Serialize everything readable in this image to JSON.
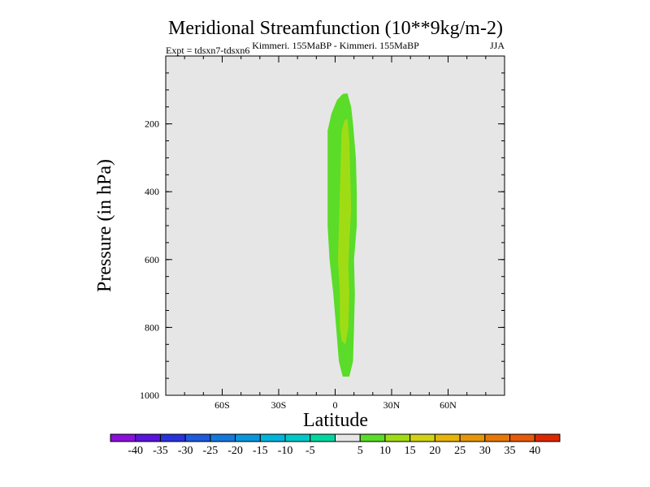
{
  "chart_data": {
    "type": "heatmap",
    "title": "Meridional Streamfunction (10**9kg/m-2)",
    "subtitle_left": "Expt = tdsxn7-tdsxn6",
    "subtitle_center": "Kimmeri. 155MaBP - Kimmeri. 155MaBP",
    "subtitle_right": "JJA",
    "xlabel": "Latitude",
    "ylabel": "Pressure (in hPa)",
    "xlim": [
      -90,
      90
    ],
    "ylim": [
      1000,
      0
    ],
    "x_ticks": [
      {
        "value": -60,
        "label": "60S"
      },
      {
        "value": -30,
        "label": "30S"
      },
      {
        "value": 0,
        "label": "0"
      },
      {
        "value": 30,
        "label": "30N"
      },
      {
        "value": 60,
        "label": "60N"
      }
    ],
    "y_ticks": [
      {
        "value": 200,
        "label": "200"
      },
      {
        "value": 400,
        "label": "400"
      },
      {
        "value": 600,
        "label": "600"
      },
      {
        "value": 800,
        "label": "800"
      },
      {
        "value": 1000,
        "label": "1000"
      }
    ],
    "background_color": "#e6e6e6",
    "contours": [
      {
        "level": "5 to 10",
        "color": "#5adc28",
        "points": [
          [
            6.5,
            110
          ],
          [
            8.5,
            150
          ],
          [
            9.5,
            200
          ],
          [
            11,
            300
          ],
          [
            11.5,
            400
          ],
          [
            11.5,
            500
          ],
          [
            10,
            600
          ],
          [
            10.5,
            700
          ],
          [
            10,
            800
          ],
          [
            9.5,
            900
          ],
          [
            7.5,
            945
          ],
          [
            4,
            945
          ],
          [
            2,
            900
          ],
          [
            0.5,
            800
          ],
          [
            -1,
            700
          ],
          [
            -3,
            600
          ],
          [
            -4,
            500
          ],
          [
            -4,
            400
          ],
          [
            -4,
            300
          ],
          [
            -4,
            220
          ],
          [
            -2,
            170
          ],
          [
            1,
            130
          ],
          [
            4,
            112
          ]
        ]
      },
      {
        "level": "10 to 15",
        "color": "#a0dc14",
        "points": [
          [
            6.5,
            185
          ],
          [
            7.5,
            250
          ],
          [
            8,
            350
          ],
          [
            8.5,
            450
          ],
          [
            7.5,
            550
          ],
          [
            7,
            620
          ],
          [
            7.5,
            700
          ],
          [
            7,
            800
          ],
          [
            5.5,
            850
          ],
          [
            3.5,
            840
          ],
          [
            2.5,
            800
          ],
          [
            2.5,
            700
          ],
          [
            1.5,
            600
          ],
          [
            2,
            500
          ],
          [
            2.5,
            400
          ],
          [
            3,
            300
          ],
          [
            3.5,
            220
          ],
          [
            5,
            190
          ]
        ]
      }
    ],
    "colorbar": {
      "colors": [
        "#8c0fdc",
        "#5a14dc",
        "#2832dc",
        "#1e5adc",
        "#1478dc",
        "#0a96dc",
        "#00b4dc",
        "#00c8c8",
        "#00d7a0",
        "#e6e6e6",
        "#5adc28",
        "#a0dc14",
        "#d2d214",
        "#e6b40a",
        "#e6960a",
        "#e6780a",
        "#e65a0a",
        "#dc2800"
      ],
      "labels": [
        "-40",
        "-35",
        "-30",
        "-25",
        "-20",
        "-15",
        "-10",
        "-5",
        "5",
        "10",
        "15",
        "20",
        "25",
        "30",
        "35",
        "40"
      ]
    }
  }
}
